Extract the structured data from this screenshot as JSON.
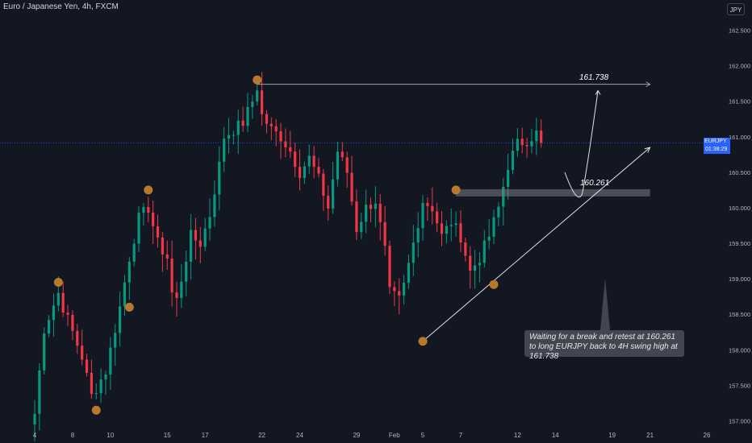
{
  "header": {
    "title": "Euro / Japanese Yen, 4h, FXCM",
    "currency_button": "JPY"
  },
  "price_marker": {
    "symbol": "EURJPY",
    "price": "160.915",
    "countdown": "01:38:29"
  },
  "annotations": {
    "resistance_label": "161.738",
    "support_label": "160.261",
    "note": "Waiting for a break and retest at 160.261 to long EURJPY back to 4H swing high at 161.738"
  },
  "colors": {
    "background": "#131722",
    "up_candle": "#089981",
    "down_candle": "#f23645",
    "swing_marker": "#b8792e",
    "price_tag": "#2962ff"
  },
  "chart_data": {
    "type": "candlestick",
    "title": "Euro / Japanese Yen, 4h, FXCM",
    "xlabel": "",
    "ylabel": "",
    "ylim": [
      156.95,
      162.75
    ],
    "y_ticks": [
      157.0,
      157.5,
      158.0,
      158.5,
      159.0,
      159.5,
      160.0,
      160.5,
      161.0,
      161.5,
      162.0,
      162.5
    ],
    "y_tick_labels": [
      "157.000",
      "157.500",
      "158.000",
      "158.500",
      "159.000",
      "159.500",
      "160.000",
      "160.500",
      "161.000",
      "161.500",
      "162.000",
      "162.500"
    ],
    "x_tick_labels": [
      "4",
      "8",
      "10",
      "15",
      "17",
      "22",
      "24",
      "29",
      "Feb",
      "5",
      "7",
      "12",
      "14",
      "19",
      "21",
      "26"
    ],
    "bars_total": 136,
    "bars_shown": 108,
    "x_tick_bar_index": [
      0,
      8,
      16,
      28,
      36,
      48,
      56,
      68,
      76,
      82,
      90,
      102,
      110,
      122,
      130,
      142
    ],
    "anchors": [
      {
        "bar": 0,
        "price": 157.1
      },
      {
        "bar": 2,
        "price": 158.3
      },
      {
        "bar": 5,
        "price": 158.8
      },
      {
        "bar": 6,
        "price": 158.6
      },
      {
        "bar": 10,
        "price": 157.9
      },
      {
        "bar": 12,
        "price": 157.35
      },
      {
        "bar": 15,
        "price": 157.7
      },
      {
        "bar": 18,
        "price": 158.6
      },
      {
        "bar": 20,
        "price": 159.3
      },
      {
        "bar": 22,
        "price": 159.85
      },
      {
        "bar": 24,
        "price": 160.0
      },
      {
        "bar": 26,
        "price": 159.5
      },
      {
        "bar": 28,
        "price": 159.3
      },
      {
        "bar": 29,
        "price": 158.8
      },
      {
        "bar": 30,
        "price": 158.7
      },
      {
        "bar": 31,
        "price": 159.0
      },
      {
        "bar": 33,
        "price": 159.6
      },
      {
        "bar": 35,
        "price": 159.5
      },
      {
        "bar": 37,
        "price": 159.9
      },
      {
        "bar": 39,
        "price": 160.6
      },
      {
        "bar": 40,
        "price": 161.0
      },
      {
        "bar": 42,
        "price": 161.1
      },
      {
        "bar": 44,
        "price": 161.2
      },
      {
        "bar": 46,
        "price": 161.5
      },
      {
        "bar": 47,
        "price": 161.7
      },
      {
        "bar": 48,
        "price": 161.3
      },
      {
        "bar": 50,
        "price": 161.1
      },
      {
        "bar": 52,
        "price": 161.0
      },
      {
        "bar": 54,
        "price": 160.8
      },
      {
        "bar": 56,
        "price": 160.5
      },
      {
        "bar": 58,
        "price": 160.7
      },
      {
        "bar": 60,
        "price": 160.4
      },
      {
        "bar": 62,
        "price": 160.0
      },
      {
        "bar": 64,
        "price": 160.8
      },
      {
        "bar": 66,
        "price": 160.5
      },
      {
        "bar": 68,
        "price": 159.7
      },
      {
        "bar": 70,
        "price": 160.0
      },
      {
        "bar": 72,
        "price": 160.1
      },
      {
        "bar": 74,
        "price": 159.4
      },
      {
        "bar": 75,
        "price": 158.8
      },
      {
        "bar": 77,
        "price": 158.7
      },
      {
        "bar": 78,
        "price": 158.9
      },
      {
        "bar": 80,
        "price": 159.5
      },
      {
        "bar": 82,
        "price": 160.1
      },
      {
        "bar": 84,
        "price": 160.0
      },
      {
        "bar": 86,
        "price": 159.6
      },
      {
        "bar": 88,
        "price": 159.8
      },
      {
        "bar": 90,
        "price": 159.6
      },
      {
        "bar": 92,
        "price": 159.1
      },
      {
        "bar": 94,
        "price": 159.3
      },
      {
        "bar": 96,
        "price": 159.6
      },
      {
        "bar": 98,
        "price": 160.0
      },
      {
        "bar": 100,
        "price": 160.6
      },
      {
        "bar": 102,
        "price": 160.9
      },
      {
        "bar": 104,
        "price": 160.95
      },
      {
        "bar": 106,
        "price": 161.05
      },
      {
        "bar": 107,
        "price": 160.915
      }
    ],
    "horizontal_lines": [
      {
        "price": 161.738,
        "label": "161.738",
        "from_bar": 47,
        "to_bar": 130
      },
      {
        "price": 160.915,
        "label": "160.915",
        "type": "current_price"
      }
    ],
    "zones": [
      {
        "price_top": 160.261,
        "price_bottom": 160.16,
        "label": "160.261",
        "from_bar": 89,
        "to_bar": 130
      }
    ],
    "trendline": {
      "from": {
        "bar": 82,
        "price": 158.12
      },
      "to": {
        "bar": 130,
        "price": 160.85
      }
    },
    "swing_markers": [
      {
        "bar": 5,
        "price": 158.95
      },
      {
        "bar": 13,
        "price": 157.15
      },
      {
        "bar": 20,
        "price": 158.6
      },
      {
        "bar": 24,
        "price": 160.25
      },
      {
        "bar": 47,
        "price": 161.8
      },
      {
        "bar": 82,
        "price": 158.12
      },
      {
        "bar": 89,
        "price": 160.25
      },
      {
        "bar": 97,
        "price": 158.92
      }
    ],
    "projection_path": [
      {
        "bar": 112,
        "price": 160.5
      },
      {
        "bar": 115,
        "price": 160.2
      },
      {
        "bar": 119,
        "price": 161.65
      }
    ],
    "grid": false
  }
}
